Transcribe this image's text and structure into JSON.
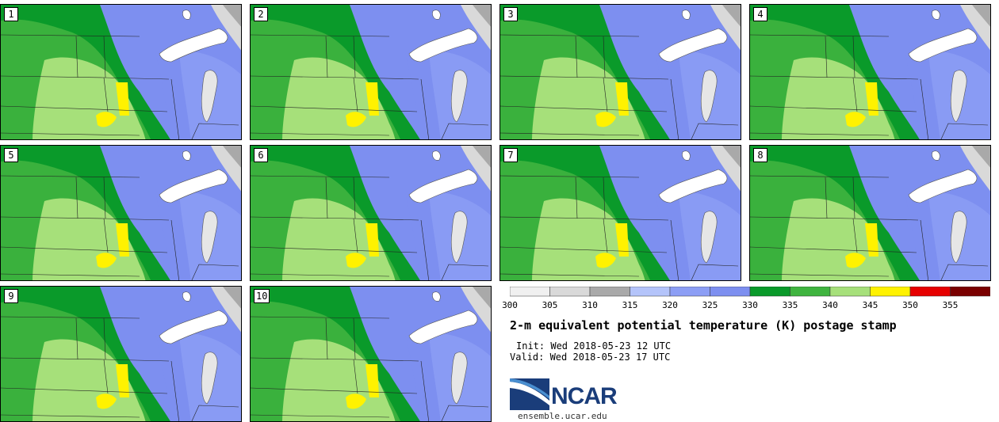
{
  "panels": [
    {
      "label": "1"
    },
    {
      "label": "2"
    },
    {
      "label": "3"
    },
    {
      "label": "4"
    },
    {
      "label": "5"
    },
    {
      "label": "6"
    },
    {
      "label": "7"
    },
    {
      "label": "8"
    },
    {
      "label": "9"
    },
    {
      "label": "10"
    }
  ],
  "colorbar": {
    "ticks": [
      "300",
      "305",
      "310",
      "315",
      "320",
      "325",
      "330",
      "335",
      "340",
      "345",
      "350",
      "355"
    ],
    "colors": [
      "#f0f0f0",
      "#d9d9d9",
      "#a9a9a9",
      "#b4c4fa",
      "#8c9ef5",
      "#7d8ff0",
      "#0a9a2a",
      "#3fb43f",
      "#a6e07a",
      "#fff200",
      "#e60000",
      "#7a0000"
    ]
  },
  "title": "2-m equivalent potential temperature (K) postage stamp",
  "init_line": "Init: Wed 2018-05-23 12 UTC",
  "valid_line": "Valid: Wed 2018-05-23 17 UTC",
  "logo": {
    "wordmark": "NCAR",
    "url": "ensemble.ucar.edu"
  }
}
